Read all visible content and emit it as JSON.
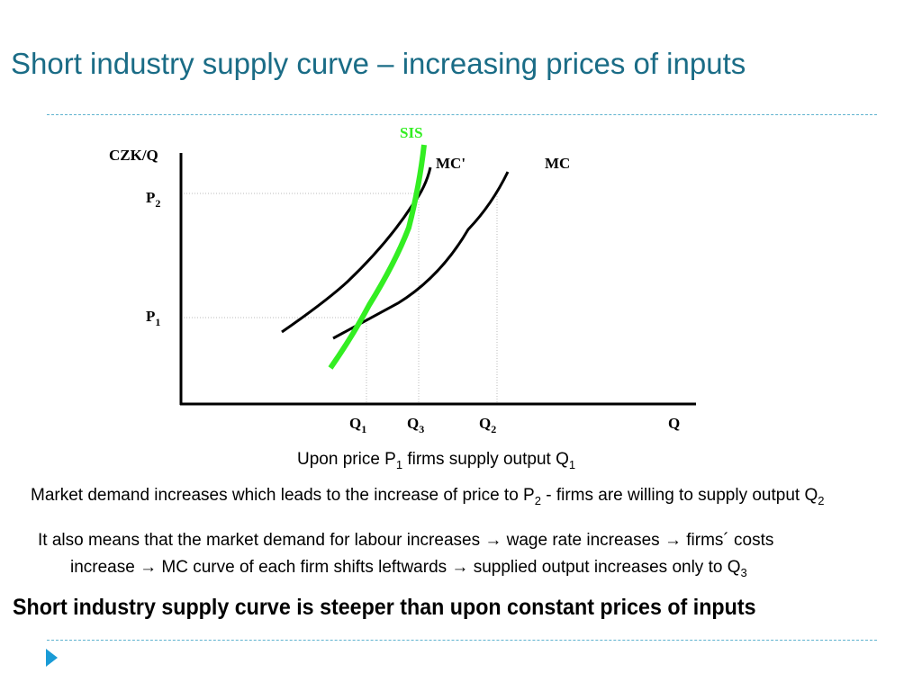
{
  "slide": {
    "title": "Short industry supply curve – increasing prices of inputs",
    "conclusion": "Short industry supply curve is steeper than upon constant prices of inputs"
  },
  "diagram": {
    "y_axis_label": "CZK/Q",
    "x_axis_label": "Q",
    "price_labels": [
      {
        "main": "P",
        "sub": "2"
      },
      {
        "main": "P",
        "sub": "1"
      }
    ],
    "quantity_labels": [
      {
        "main": "Q",
        "sub": "1"
      },
      {
        "main": "Q",
        "sub": "3"
      },
      {
        "main": "Q",
        "sub": "2"
      }
    ],
    "curve_labels": {
      "sis": "SIS",
      "mc_prime": "MC'",
      "mc": "MC"
    },
    "colors": {
      "sis": "#33ee22",
      "curves": "#000000",
      "title": "#1a6c86",
      "rule": "#5fb3cf",
      "bullet": "#1a9bd6"
    }
  },
  "text": {
    "line1": {
      "a": "Upon price P",
      "a_sub": "1",
      "b": " firms supply output Q",
      "b_sub": "1"
    },
    "line2": {
      "a": "Market demand increases which leads to the increase of price to P",
      "a_sub": "2",
      "b": " - firms are willing to supply output Q",
      "b_sub": "2"
    },
    "line3": "It also means that the market demand for labour increases → wage rate increases → firms´ costs",
    "line4": {
      "a": "increase → MC curve of each firm shifts leftwards → supplied output increases only to Q",
      "a_sub": "3"
    }
  }
}
